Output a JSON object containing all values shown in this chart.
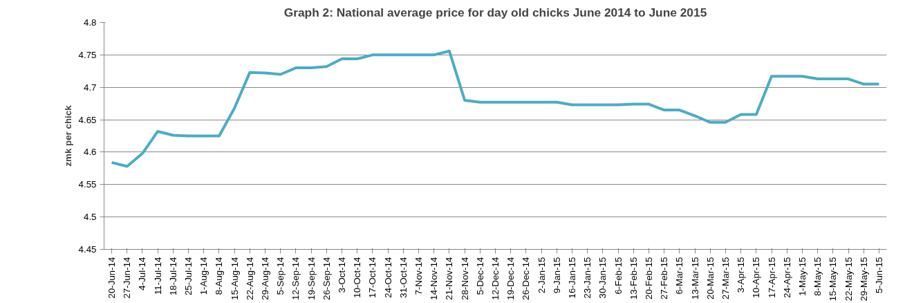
{
  "chart_data": {
    "type": "line",
    "title": "Graph 2: National average price for day old chicks June 2014 to June 2015",
    "ylabel": "zmk per chick",
    "categories": [
      "20-Jun-14",
      "27-Jun-14",
      "4-Jul-14",
      "11-Jul-14",
      "18-Jul-14",
      "25-Jul-14",
      "1-Aug-14",
      "8-Aug-14",
      "15-Aug-14",
      "22-Aug-14",
      "29-Aug-14",
      "5-Sep-14",
      "12-Sep-14",
      "19-Sep-14",
      "26-Sep-14",
      "3-Oct-14",
      "10-Oct-14",
      "17-Oct-14",
      "24-Oct-14",
      "31-Oct-14",
      "7-Nov-14",
      "14-Nov-14",
      "21-Nov-14",
      "28-Nov-14",
      "5-Dec-14",
      "12-Dec-14",
      "19-Dec-14",
      "26-Dec-14",
      "2-Jan-15",
      "9-Jan-15",
      "16-Jan-15",
      "23-Jan-15",
      "30-Jan-15",
      "6-Feb-15",
      "13-Feb-15",
      "20-Feb-15",
      "27-Feb-15",
      "6-Mar-15",
      "13-Mar-15",
      "20-Mar-15",
      "27-Mar-15",
      "3-Apr-15",
      "10-Apr-15",
      "17-Apr-15",
      "24-Apr-15",
      "1-May-15",
      "8-May-15",
      "15-May-15",
      "22-May-15",
      "29-May-15",
      "5-Jun-15"
    ],
    "series": [
      {
        "color": "#4bacc6",
        "values": [
          4.584,
          4.578,
          4.598,
          4.632,
          4.626,
          4.625,
          4.625,
          4.625,
          4.668,
          4.723,
          4.722,
          4.72,
          4.73,
          4.73,
          4.732,
          4.744,
          4.744,
          4.75,
          4.75,
          4.75,
          4.75,
          4.75,
          4.756,
          4.68,
          4.677,
          4.677,
          4.677,
          4.677,
          4.677,
          4.677,
          4.673,
          4.673,
          4.673,
          4.673,
          4.674,
          4.674,
          4.665,
          4.665,
          4.656,
          4.646,
          4.646,
          4.658,
          4.658,
          4.717,
          4.717,
          4.717,
          4.713,
          4.713,
          4.713,
          4.705,
          4.705
        ]
      }
    ],
    "ylim": [
      4.45,
      4.8
    ],
    "yticks": [
      4.45,
      4.5,
      4.55,
      4.6,
      4.65,
      4.7,
      4.75,
      4.8
    ],
    "grid": "y",
    "marker": "none",
    "line_style": "solid"
  }
}
